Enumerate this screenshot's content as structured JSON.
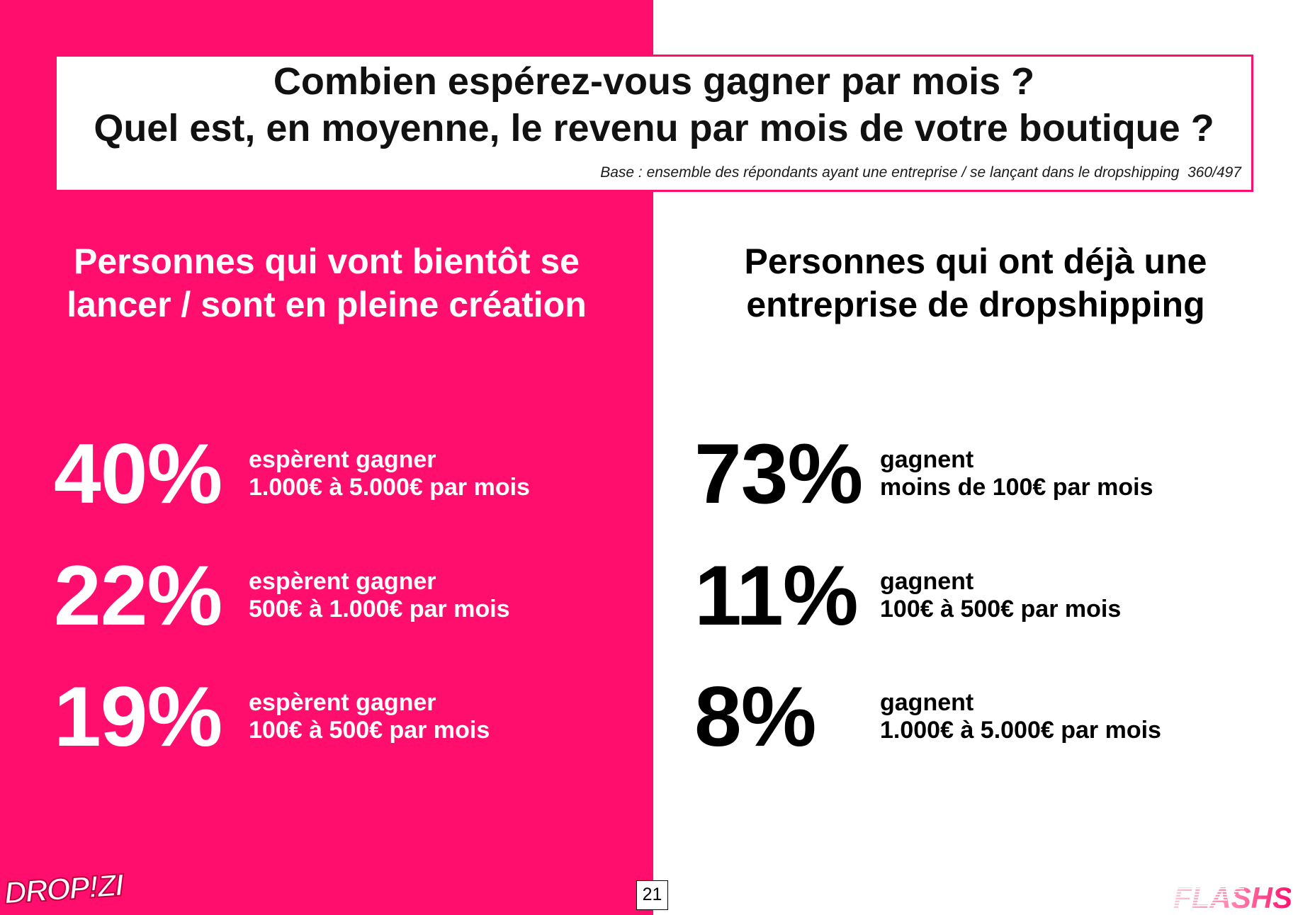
{
  "colors": {
    "accent": "#FF0E6E",
    "left_text": "#FFFFFF",
    "right_text": "#000000"
  },
  "title": {
    "line1": "Combien espérez-vous gagner par mois ?",
    "line2": "Quel est, en moyenne, le revenu par mois de votre boutique ?",
    "base": "Base : ensemble des répondants ayant une entreprise / se lançant dans le dropshipping  360/497"
  },
  "left": {
    "heading_line1": "Personnes qui vont bientôt se",
    "heading_line2": "lancer / sont en pleine création",
    "stats": [
      {
        "percent": "40%",
        "line1": "espèrent gagner",
        "line2": "1.000€ à 5.000€ par mois"
      },
      {
        "percent": "22%",
        "line1": "espèrent gagner",
        "line2": "500€ à 1.000€ par mois"
      },
      {
        "percent": "19%",
        "line1": "espèrent gagner",
        "line2": "100€ à 500€ par mois"
      }
    ]
  },
  "right": {
    "heading_line1": "Personnes qui ont déjà une",
    "heading_line2": "entreprise de dropshipping",
    "stats": [
      {
        "percent": "73%",
        "line1": "gagnent",
        "line2": "moins de 100€ par mois"
      },
      {
        "percent": "11%",
        "line1": "gagnent",
        "line2": "100€ à 500€ par mois"
      },
      {
        "percent": "8%",
        "line1": "gagnent",
        "line2": "1.000€ à 5.000€ par mois"
      }
    ]
  },
  "page": {
    "number": "21"
  },
  "logos": {
    "left": "DROP!ZI",
    "right": "FLASHS"
  }
}
